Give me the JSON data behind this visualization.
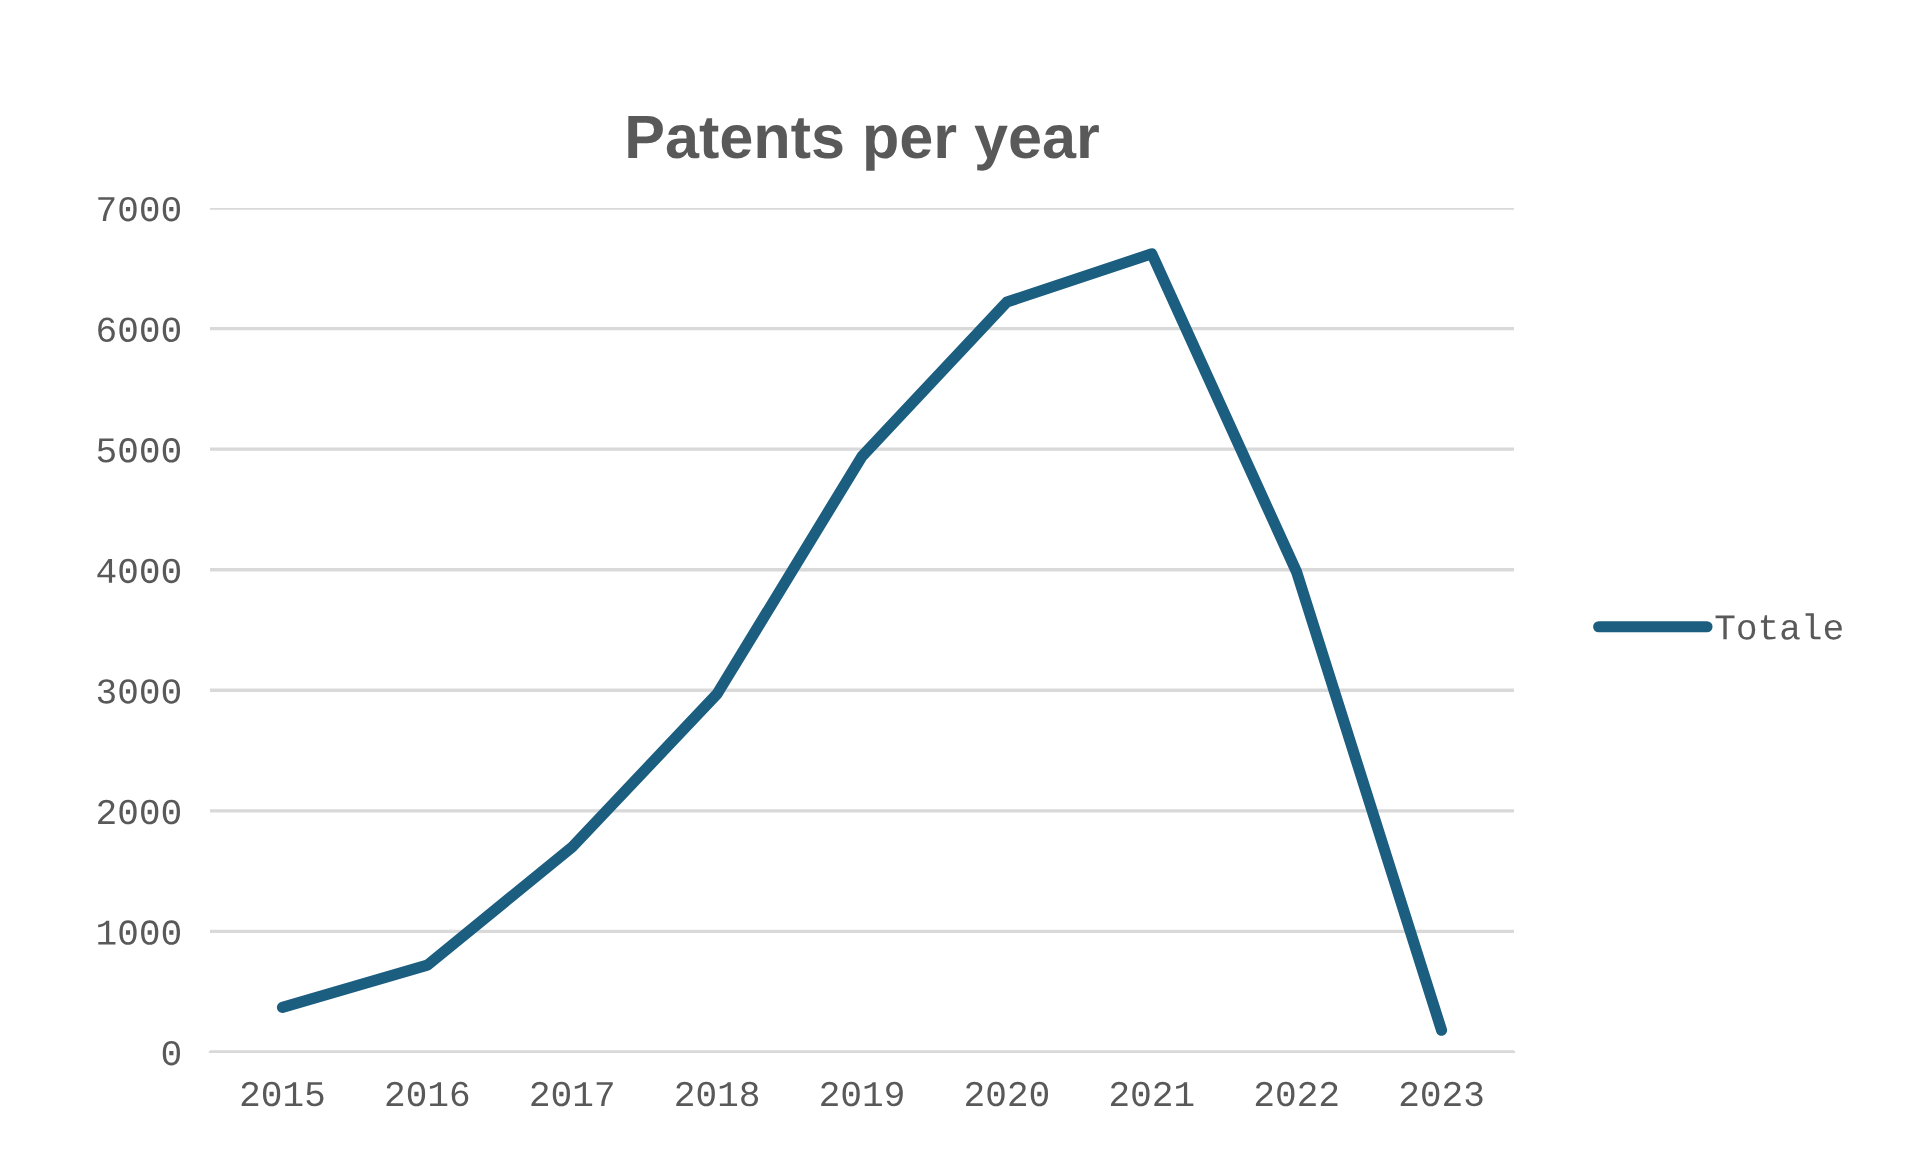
{
  "chart_data": {
    "type": "line",
    "title": "Patents per year",
    "categories": [
      "2015",
      "2016",
      "2017",
      "2018",
      "2019",
      "2020",
      "2021",
      "2022",
      "2023"
    ],
    "series": [
      {
        "name": "Totale",
        "color": "#1b5e80",
        "values": [
          370,
          720,
          1700,
          2970,
          4940,
          6220,
          6620,
          3980,
          180
        ]
      }
    ],
    "ylim": [
      0,
      7000
    ],
    "yticks": [
      0,
      1000,
      2000,
      3000,
      4000,
      5000,
      6000,
      7000
    ],
    "grid": "y",
    "legend": "right",
    "marker": "none",
    "line_style": "solid"
  }
}
